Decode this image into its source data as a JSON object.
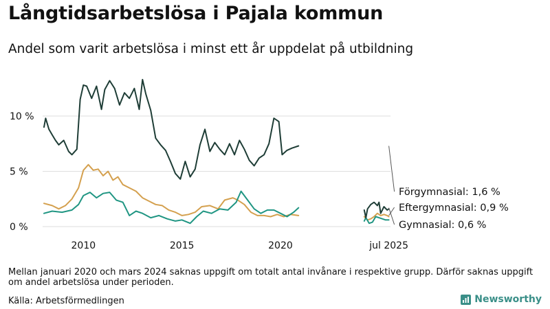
{
  "title": "Långtidsarbetslösa i Pajala kommun",
  "subtitle": "Andel som varit arbetslösa i minst ett år uppdelat på utbildning",
  "note": "Mellan januari 2020 och mars 2024 saknas uppgift om totalt antal invånare i respektive grupp. Därför saknas uppgift om andel arbetslösa under perioden.",
  "source": "Källa: Arbetsförmedlingen",
  "brand": {
    "name": "Newsworthy",
    "icon": "chart-bars-icon"
  },
  "chart_data": {
    "type": "line",
    "title": "Långtidsarbetslösa i Pajala kommun",
    "subtitle": "Andel som varit arbetslösa i minst ett år uppdelat på utbildning",
    "ylim": [
      0,
      13.5
    ],
    "grid": true,
    "legend": "direct labels at right end of lines",
    "y_ticks": [
      {
        "value": 0,
        "label": "0 %"
      },
      {
        "value": 5,
        "label": "5 %"
      },
      {
        "value": 10,
        "label": "10 %"
      }
    ],
    "x_ticks": [
      {
        "value": "2010-01",
        "label": "2010"
      },
      {
        "value": "2015-01",
        "label": "2015"
      },
      {
        "value": "2020-01",
        "label": "2020"
      },
      {
        "value": "2025-07",
        "label": "jul 2025"
      }
    ],
    "series": [
      {
        "name": "Förgymnasial",
        "end_label": "Förgymnasial: 1,6 %",
        "color": "#1e3d36",
        "x": [
          "2008-01",
          "2008-02",
          "2008-04",
          "2008-06",
          "2008-08",
          "2008-10",
          "2009-01",
          "2009-04",
          "2009-06",
          "2009-09",
          "2009-11",
          "2010-01",
          "2010-03",
          "2010-06",
          "2010-09",
          "2010-12",
          "2011-02",
          "2011-05",
          "2011-08",
          "2011-11",
          "2012-02",
          "2012-05",
          "2012-08",
          "2012-11",
          "2013-01",
          "2013-03",
          "2013-06",
          "2013-09",
          "2013-12",
          "2014-03",
          "2014-06",
          "2014-09",
          "2014-12",
          "2015-03",
          "2015-06",
          "2015-09",
          "2015-12",
          "2016-03",
          "2016-06",
          "2016-09",
          "2016-12",
          "2017-03",
          "2017-06",
          "2017-09",
          "2017-12",
          "2018-03",
          "2018-06",
          "2018-09",
          "2018-12",
          "2019-03",
          "2019-06",
          "2019-09",
          "2019-12",
          "2020-02",
          "2020-05",
          "2020-08",
          "2020-12"
        ],
        "values": [
          9.0,
          9.8,
          8.8,
          8.3,
          7.8,
          7.4,
          7.8,
          6.8,
          6.5,
          7.0,
          11.5,
          12.8,
          12.7,
          11.6,
          12.7,
          10.6,
          12.4,
          13.2,
          12.5,
          11.0,
          12.1,
          11.6,
          12.5,
          10.6,
          13.3,
          12.0,
          10.5,
          8.0,
          7.4,
          6.9,
          5.9,
          4.8,
          4.3,
          5.9,
          4.5,
          5.2,
          7.4,
          8.8,
          6.8,
          7.6,
          7.0,
          6.5,
          7.5,
          6.5,
          7.8,
          7.0,
          6.0,
          5.5,
          6.2,
          6.5,
          7.5,
          9.8,
          9.5,
          6.5,
          6.9,
          7.1,
          7.3
        ]
      },
      {
        "name": "Eftergymnasial",
        "end_label": "Eftergymnasial: 0,9 %",
        "color": "#d4a04e",
        "x": [
          "2008-01",
          "2008-06",
          "2008-10",
          "2009-02",
          "2009-06",
          "2009-10",
          "2010-01",
          "2010-04",
          "2010-07",
          "2010-10",
          "2011-01",
          "2011-04",
          "2011-07",
          "2011-10",
          "2012-01",
          "2012-05",
          "2012-09",
          "2013-01",
          "2013-05",
          "2013-09",
          "2014-01",
          "2014-05",
          "2014-09",
          "2015-01",
          "2015-05",
          "2015-09",
          "2016-01",
          "2016-06",
          "2016-11",
          "2017-03",
          "2017-08",
          "2017-11",
          "2018-03",
          "2018-07",
          "2018-11",
          "2019-03",
          "2019-07",
          "2019-11",
          "2020-03",
          "2020-07",
          "2020-12"
        ],
        "values": [
          2.1,
          1.9,
          1.6,
          1.9,
          2.5,
          3.5,
          5.1,
          5.6,
          5.1,
          5.2,
          4.6,
          5.0,
          4.2,
          4.5,
          3.8,
          3.5,
          3.2,
          2.6,
          2.3,
          2.0,
          1.9,
          1.5,
          1.3,
          1.0,
          1.1,
          1.3,
          1.8,
          1.9,
          1.6,
          2.4,
          2.6,
          2.4,
          2.0,
          1.3,
          1.0,
          1.0,
          0.9,
          1.1,
          0.9,
          1.1,
          1.0
        ]
      },
      {
        "name": "Gymnasial",
        "end_label": "Gymnasial: 0,6 %",
        "color": "#1f9582",
        "x": [
          "2008-01",
          "2008-06",
          "2008-12",
          "2009-06",
          "2009-10",
          "2010-01",
          "2010-05",
          "2010-09",
          "2011-01",
          "2011-05",
          "2011-09",
          "2012-01",
          "2012-05",
          "2012-09",
          "2013-01",
          "2013-06",
          "2013-11",
          "2014-04",
          "2014-09",
          "2015-01",
          "2015-06",
          "2015-10",
          "2016-02",
          "2016-07",
          "2016-12",
          "2017-05",
          "2017-10",
          "2018-01",
          "2018-05",
          "2018-09",
          "2019-01",
          "2019-05",
          "2019-09",
          "2020-01",
          "2020-05",
          "2020-09",
          "2020-12"
        ],
        "values": [
          1.2,
          1.4,
          1.3,
          1.5,
          2.0,
          2.8,
          3.1,
          2.6,
          3.0,
          3.1,
          2.4,
          2.2,
          1.0,
          1.4,
          1.2,
          0.8,
          1.0,
          0.7,
          0.5,
          0.6,
          0.3,
          0.9,
          1.4,
          1.2,
          1.6,
          1.5,
          2.2,
          3.2,
          2.4,
          1.6,
          1.2,
          1.5,
          1.5,
          1.2,
          0.9,
          1.3,
          1.7
        ]
      },
      {
        "name": "Förgymnasial",
        "color": "#1e3d36",
        "x": [
          "2024-04",
          "2024-05",
          "2024-06",
          "2024-08",
          "2024-10",
          "2024-12",
          "2025-01",
          "2025-02",
          "2025-04",
          "2025-06",
          "2025-07"
        ],
        "values": [
          1.5,
          0.8,
          1.6,
          2.0,
          2.2,
          1.9,
          2.2,
          1.2,
          1.8,
          1.5,
          1.6
        ]
      },
      {
        "name": "Eftergymnasial",
        "color": "#d4a04e",
        "x": [
          "2024-04",
          "2024-06",
          "2024-08",
          "2024-10",
          "2024-12",
          "2025-02",
          "2025-04",
          "2025-06",
          "2025-07"
        ],
        "values": [
          0.9,
          0.6,
          0.7,
          0.9,
          1.2,
          1.0,
          1.1,
          1.0,
          0.9
        ]
      },
      {
        "name": "Gymnasial",
        "color": "#1f9582",
        "x": [
          "2024-04",
          "2024-05",
          "2024-07",
          "2024-09",
          "2024-11",
          "2025-01",
          "2025-03",
          "2025-05",
          "2025-07"
        ],
        "values": [
          0.5,
          0.8,
          0.3,
          0.4,
          0.9,
          0.8,
          0.7,
          0.6,
          0.6
        ]
      }
    ]
  }
}
